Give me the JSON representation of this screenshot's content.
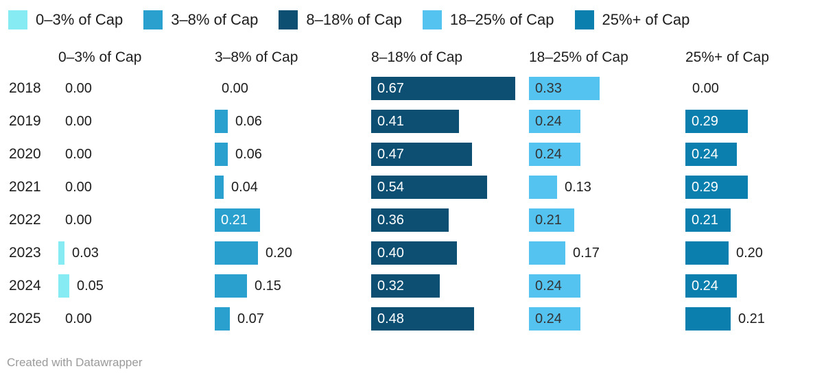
{
  "legend": {
    "items": [
      "0–3% of Cap",
      "3–8% of Cap",
      "8–18% of Cap",
      "18–25% of Cap",
      "25%+ of Cap"
    ]
  },
  "columns": [
    "0–3% of Cap",
    "3–8% of Cap",
    "8–18% of Cap",
    "18–25% of Cap",
    "25%+ of Cap"
  ],
  "series_colors": [
    "#86ebf2",
    "#29a0cd",
    "#0d4f72",
    "#55c3f0",
    "#0b7fad"
  ],
  "inside_label_colors": [
    "#333333",
    "#ffffff",
    "#ffffff",
    "#333333",
    "#ffffff"
  ],
  "outside_label_color": "#1d1d1d",
  "rows": [
    {
      "year": "2018",
      "cells": [
        {
          "value": "0.00",
          "inside": false
        },
        {
          "value": "0.00",
          "inside": false
        },
        {
          "value": "0.67",
          "inside": true
        },
        {
          "value": "0.33",
          "inside": true
        },
        {
          "value": "0.00",
          "inside": false
        }
      ]
    },
    {
      "year": "2019",
      "cells": [
        {
          "value": "0.00",
          "inside": false
        },
        {
          "value": "0.06",
          "inside": false
        },
        {
          "value": "0.41",
          "inside": true
        },
        {
          "value": "0.24",
          "inside": true
        },
        {
          "value": "0.29",
          "inside": true
        }
      ]
    },
    {
      "year": "2020",
      "cells": [
        {
          "value": "0.00",
          "inside": false
        },
        {
          "value": "0.06",
          "inside": false
        },
        {
          "value": "0.47",
          "inside": true
        },
        {
          "value": "0.24",
          "inside": true
        },
        {
          "value": "0.24",
          "inside": true
        }
      ]
    },
    {
      "year": "2021",
      "cells": [
        {
          "value": "0.00",
          "inside": false
        },
        {
          "value": "0.04",
          "inside": false
        },
        {
          "value": "0.54",
          "inside": true
        },
        {
          "value": "0.13",
          "inside": false
        },
        {
          "value": "0.29",
          "inside": true
        }
      ]
    },
    {
      "year": "2022",
      "cells": [
        {
          "value": "0.00",
          "inside": false
        },
        {
          "value": "0.21",
          "inside": true
        },
        {
          "value": "0.36",
          "inside": true
        },
        {
          "value": "0.21",
          "inside": true
        },
        {
          "value": "0.21",
          "inside": true
        }
      ]
    },
    {
      "year": "2023",
      "cells": [
        {
          "value": "0.03",
          "inside": false
        },
        {
          "value": "0.20",
          "inside": false
        },
        {
          "value": "0.40",
          "inside": true
        },
        {
          "value": "0.17",
          "inside": false
        },
        {
          "value": "0.20",
          "inside": false
        }
      ]
    },
    {
      "year": "2024",
      "cells": [
        {
          "value": "0.05",
          "inside": false
        },
        {
          "value": "0.15",
          "inside": false
        },
        {
          "value": "0.32",
          "inside": true
        },
        {
          "value": "0.24",
          "inside": true
        },
        {
          "value": "0.24",
          "inside": true
        }
      ]
    },
    {
      "year": "2025",
      "cells": [
        {
          "value": "0.00",
          "inside": false
        },
        {
          "value": "0.07",
          "inside": false
        },
        {
          "value": "0.48",
          "inside": true
        },
        {
          "value": "0.24",
          "inside": true
        },
        {
          "value": "0.21",
          "inside": false
        }
      ]
    }
  ],
  "footer": {
    "text": "Created with Datawrapper"
  },
  "chart_data": {
    "type": "bar",
    "orientation": "horizontal",
    "categories": [
      "2018",
      "2019",
      "2020",
      "2021",
      "2022",
      "2023",
      "2024",
      "2025"
    ],
    "series": [
      {
        "name": "0–3% of Cap",
        "color": "#86ebf2",
        "values": [
          0.0,
          0.0,
          0.0,
          0.0,
          0.0,
          0.03,
          0.05,
          0.0
        ]
      },
      {
        "name": "3–8% of Cap",
        "color": "#29a0cd",
        "values": [
          0.0,
          0.06,
          0.06,
          0.04,
          0.21,
          0.2,
          0.15,
          0.07
        ]
      },
      {
        "name": "8–18% of Cap",
        "color": "#0d4f72",
        "values": [
          0.67,
          0.41,
          0.47,
          0.54,
          0.36,
          0.4,
          0.32,
          0.48
        ]
      },
      {
        "name": "18–25% of Cap",
        "color": "#55c3f0",
        "values": [
          0.33,
          0.24,
          0.24,
          0.13,
          0.21,
          0.17,
          0.24,
          0.24
        ]
      },
      {
        "name": "25%+ of Cap",
        "color": "#0b7fad",
        "values": [
          0.0,
          0.29,
          0.24,
          0.29,
          0.21,
          0.2,
          0.24,
          0.21
        ]
      }
    ],
    "title": "",
    "xlabel": "",
    "ylabel": "",
    "xlim": [
      0,
      0.73
    ],
    "grid": false,
    "legend_position": "top",
    "value_format": "2-decimals"
  }
}
